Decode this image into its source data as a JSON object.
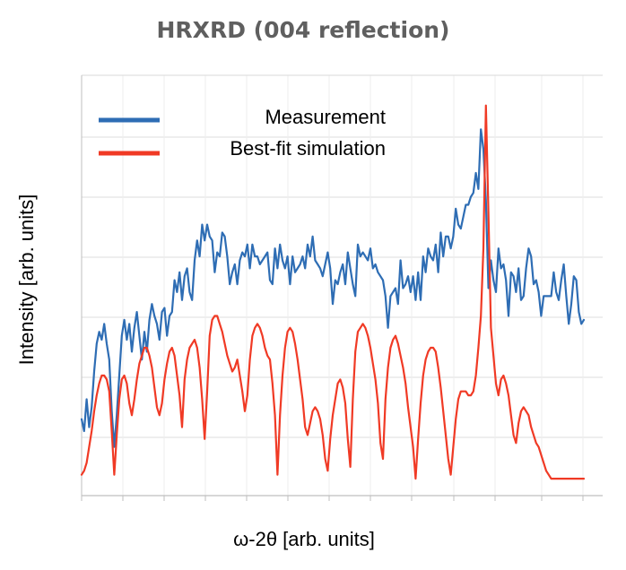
{
  "chart_data": {
    "type": "line",
    "title": "HRXRD (004 reflection)",
    "xlabel": "ω-2θ [arb. units]",
    "ylabel": "Intensity [arb. units]",
    "xlim": [
      0,
      100
    ],
    "ylim": [
      0,
      100
    ],
    "grid": true,
    "x_tick_labels_shown": false,
    "y_tick_labels_shown": false,
    "legend_position": "top-left",
    "colors": {
      "measurement": "#2e6db4",
      "simulation": "#f03a25",
      "grid": "#dddddd",
      "axis": "#bfbfbf",
      "title": "#5f5f5f"
    },
    "series": [
      {
        "name": "Measurement",
        "color": "#2e6db4",
        "x": [
          0,
          0.5,
          1,
          1.5,
          2,
          2.5,
          3,
          3.5,
          4,
          4.5,
          5,
          5.5,
          6,
          6.5,
          7,
          7.5,
          8,
          8.5,
          9,
          9.5,
          10,
          10.5,
          11,
          11.5,
          12,
          12.5,
          13,
          13.5,
          14,
          14.5,
          15,
          15.5,
          16,
          16.5,
          17,
          17.5,
          18,
          18.5,
          19,
          19.5,
          20,
          20.5,
          21,
          21.5,
          22,
          22.5,
          23,
          23.5,
          24,
          24.5,
          25,
          25.5,
          26,
          26.5,
          27,
          27.5,
          28,
          28.5,
          29,
          29.5,
          30,
          30.5,
          31,
          31.5,
          32,
          32.5,
          33,
          33.5,
          34,
          34.5,
          35,
          35.5,
          36,
          36.5,
          37,
          37.5,
          38,
          38.5,
          39,
          39.5,
          40,
          40.5,
          41,
          41.5,
          42,
          42.5,
          43,
          43.5,
          44,
          44.5,
          45,
          45.5,
          46,
          46.5,
          47,
          47.5,
          48,
          48.5,
          49,
          49.5,
          50,
          50.5,
          51,
          51.5,
          52,
          52.5,
          53,
          53.5,
          54,
          54.5,
          55,
          55.5,
          56,
          56.5,
          57,
          57.5,
          58,
          58.5,
          59,
          59.5,
          60,
          60.5,
          61,
          61.5,
          62,
          62.5,
          63,
          63.5,
          64,
          64.5,
          65,
          65.5,
          66,
          66.5,
          67,
          67.5,
          68,
          68.5,
          69,
          69.5,
          70,
          70.5,
          71,
          71.5,
          72,
          72.5,
          73,
          73.5,
          74,
          74.5,
          75,
          75.5,
          76,
          76.5,
          77,
          77.5,
          78,
          78.5,
          79,
          79.5,
          80,
          80.5,
          81,
          81.5,
          82,
          82.5,
          83,
          83.5,
          84,
          84.5,
          85,
          85.5,
          86,
          86.5,
          87,
          87.5,
          88,
          88.5,
          89,
          89.5,
          90,
          90.5,
          91,
          91.5,
          92,
          92.5,
          93,
          93.5,
          94,
          94.5,
          95,
          95.5,
          96,
          96.5,
          97,
          97.5,
          98,
          98.5,
          99,
          99.5,
          100
        ],
        "y": [
          17,
          14,
          22,
          15,
          20,
          29,
          36,
          39,
          37,
          41,
          36,
          32,
          19,
          10,
          18,
          28,
          38,
          42,
          37,
          41,
          34,
          40,
          44,
          38,
          32,
          39,
          34,
          42,
          46,
          43,
          41,
          37,
          44,
          45,
          38,
          43,
          44,
          52,
          49,
          54,
          47,
          53,
          55,
          49,
          47,
          57,
          62,
          58,
          66,
          62,
          66,
          63,
          62,
          54,
          59,
          58,
          64,
          63,
          58,
          51,
          54,
          56,
          51,
          57,
          59,
          58,
          61,
          55,
          61,
          58,
          58,
          56,
          57,
          58,
          59,
          52,
          51,
          60,
          55,
          61,
          57,
          55,
          58,
          51,
          58,
          54,
          55,
          56,
          58,
          55,
          61,
          58,
          63,
          57,
          56,
          55,
          53,
          56,
          59,
          55,
          46,
          52,
          51,
          54,
          56,
          51,
          59,
          55,
          51,
          48,
          61,
          58,
          59,
          58,
          57,
          60,
          55,
          56,
          54,
          53,
          52,
          48,
          40,
          48,
          49,
          50,
          46,
          57,
          50,
          51,
          53,
          49,
          53,
          47,
          54,
          47,
          58,
          54,
          60,
          58,
          57,
          61,
          54,
          64,
          58,
          63,
          63,
          60,
          63,
          70,
          66,
          65,
          68,
          71,
          71,
          73,
          74,
          79,
          75,
          90,
          85,
          72,
          50,
          57,
          52,
          49,
          60,
          55,
          56,
          52,
          43,
          54,
          53,
          49,
          55,
          47,
          48,
          55,
          60,
          58,
          51,
          52,
          49,
          43,
          48,
          48,
          48,
          48,
          54,
          49,
          47,
          52,
          56,
          48,
          41,
          46,
          53,
          52,
          44,
          41,
          42
        ]
      },
      {
        "name": "Best-fit simulation",
        "color": "#f03a25",
        "x": [
          0,
          0.5,
          1,
          1.5,
          2,
          2.5,
          3,
          3.5,
          4,
          4.5,
          5,
          5.5,
          6,
          6.5,
          7,
          7.5,
          8,
          8.5,
          9,
          9.5,
          10,
          10.5,
          11,
          11.5,
          12,
          12.5,
          13,
          13.5,
          14,
          14.5,
          15,
          15.5,
          16,
          16.5,
          17,
          17.5,
          18,
          18.5,
          19,
          19.5,
          20,
          20.5,
          21,
          21.5,
          22,
          22.5,
          23,
          23.5,
          24,
          24.5,
          25,
          25.5,
          26,
          26.5,
          27,
          27.5,
          28,
          28.5,
          29,
          29.5,
          30,
          30.5,
          31,
          31.5,
          32,
          32.5,
          33,
          33.5,
          34,
          34.5,
          35,
          35.5,
          36,
          36.5,
          37,
          37.5,
          38,
          38.5,
          39,
          39.5,
          40,
          40.5,
          41,
          41.5,
          42,
          42.5,
          43,
          43.5,
          44,
          44.5,
          45,
          45.5,
          46,
          46.5,
          47,
          47.5,
          48,
          48.5,
          49,
          49.5,
          50,
          50.5,
          51,
          51.5,
          52,
          52.5,
          53,
          53.5,
          54,
          54.5,
          55,
          55.5,
          56,
          56.5,
          57,
          57.5,
          58,
          58.5,
          59,
          59.5,
          60,
          60.5,
          61,
          61.5,
          62,
          62.5,
          63,
          63.5,
          64,
          64.5,
          65,
          65.5,
          66,
          66.5,
          67,
          67.5,
          68,
          68.5,
          69,
          69.5,
          70,
          70.5,
          71,
          71.5,
          72,
          72.5,
          73,
          73.5,
          74,
          74.5,
          75,
          75.5,
          76,
          76.5,
          77,
          77.5,
          78,
          78.5,
          79,
          79.5,
          80,
          80.5,
          81,
          81.5,
          82,
          82.5,
          83,
          83.5,
          84,
          84.5,
          85,
          85.5,
          86,
          86.5,
          87,
          87.5,
          88,
          88.5,
          89,
          89.5,
          90,
          90.5,
          91,
          91.5,
          92,
          92.5,
          93,
          93.5,
          94,
          94.5,
          95,
          95.5,
          96,
          96.5,
          97,
          97.5,
          98,
          98.5,
          99,
          99.5,
          100
        ],
        "y": [
          3,
          4,
          6,
          10,
          14,
          19,
          23,
          26,
          28,
          28,
          27,
          24,
          14,
          3,
          13,
          22,
          27,
          28,
          26,
          21,
          18,
          22,
          27,
          31,
          33,
          35,
          35,
          33,
          30,
          25,
          20,
          18,
          21,
          27,
          31,
          34,
          35,
          33,
          28,
          23,
          15,
          27,
          32,
          35,
          36,
          37,
          35,
          30,
          22,
          12,
          24,
          38,
          42,
          43,
          43,
          41,
          39,
          36,
          33,
          31,
          29,
          30,
          32,
          28,
          24,
          19,
          23,
          32,
          38,
          40,
          41,
          40,
          38,
          35,
          33,
          32,
          26,
          18,
          3,
          18,
          28,
          35,
          39,
          40,
          39,
          36,
          32,
          27,
          22,
          15,
          13,
          16,
          19,
          20,
          19,
          17,
          13,
          7,
          4,
          12,
          18,
          22,
          26,
          27,
          25,
          21,
          12,
          5,
          22,
          34,
          39,
          40,
          41,
          40,
          38,
          35,
          31,
          27,
          21,
          11,
          7,
          22,
          30,
          35,
          37,
          38,
          36,
          33,
          30,
          26,
          20,
          15,
          10,
          2,
          12,
          21,
          28,
          32,
          34,
          35,
          35,
          34,
          30,
          25,
          19,
          13,
          7,
          3,
          10,
          17,
          22,
          24,
          24,
          24,
          23,
          23,
          24,
          28,
          35,
          43,
          60,
          96,
          69,
          40,
          33,
          26,
          23,
          27,
          28,
          26,
          23,
          18,
          13,
          11,
          16,
          19,
          20,
          19,
          18,
          15,
          13,
          11,
          10,
          8,
          6,
          4,
          3,
          2,
          2,
          2,
          2,
          2,
          2,
          2,
          2,
          2,
          2,
          2,
          2,
          2,
          2
        ]
      }
    ]
  }
}
